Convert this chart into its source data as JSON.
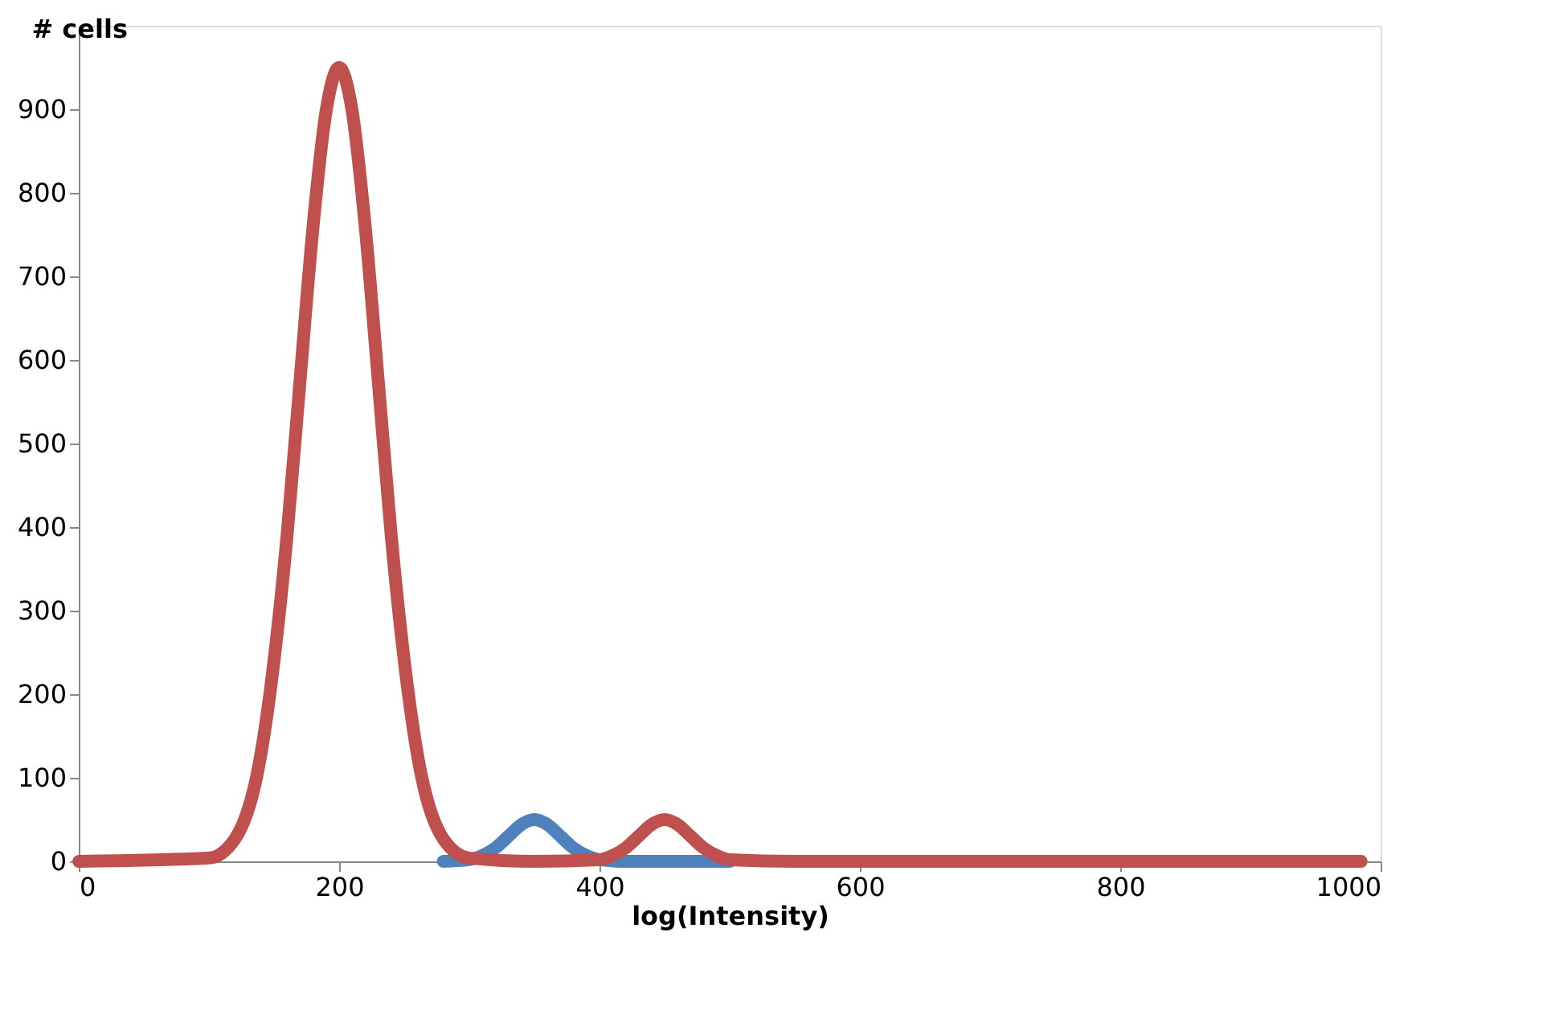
{
  "chart_data": {
    "type": "line",
    "xlabel": "log(Intensity)",
    "ylabel": "# cells",
    "xlim": [
      0,
      1000
    ],
    "xticks": [
      0,
      200,
      400,
      600,
      800,
      1000
    ],
    "ylim": [
      0,
      1000
    ],
    "yticks": [
      0,
      100,
      200,
      300,
      400,
      500,
      600,
      700,
      800,
      900
    ],
    "grid": false,
    "marker": "none",
    "line_style": "solid",
    "series": [
      {
        "color": "#4f81bd",
        "x": [
          280,
          300,
          310,
          320,
          330,
          340,
          350,
          360,
          370,
          380,
          390,
          400,
          420,
          450,
          480,
          500
        ],
        "values": [
          0,
          2,
          7,
          16,
          30,
          44,
          50,
          44,
          30,
          16,
          7,
          2,
          0,
          0,
          0,
          0
        ]
      },
      {
        "color": "#c0504d",
        "x": [
          0,
          100,
          120,
          140,
          160,
          170,
          180,
          190,
          200,
          210,
          220,
          230,
          240,
          260,
          280,
          300,
          350,
          400,
          410,
          420,
          430,
          440,
          450,
          460,
          470,
          480,
          490,
          500,
          550,
          700,
          985
        ],
        "values": [
          0,
          4,
          27,
          129,
          390,
          576,
          760,
          898,
          950,
          898,
          760,
          576,
          390,
          129,
          27,
          4,
          0,
          2,
          7,
          16,
          30,
          44,
          50,
          44,
          30,
          16,
          7,
          2,
          0,
          0,
          0
        ]
      }
    ]
  }
}
